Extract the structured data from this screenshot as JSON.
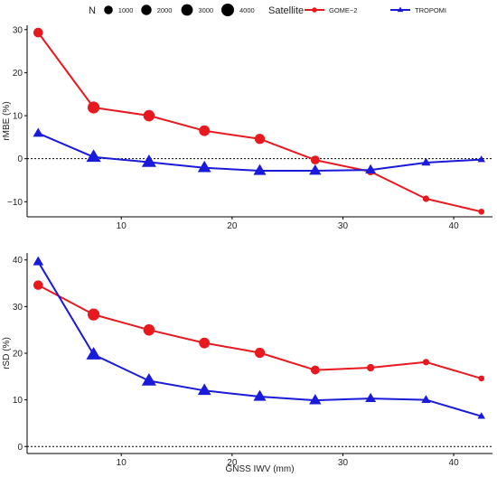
{
  "legend": {
    "size_title": "N",
    "size_entries": [
      {
        "label": "1000",
        "value": 1000
      },
      {
        "label": "2000",
        "value": 2000
      },
      {
        "label": "3000",
        "value": 3000
      },
      {
        "label": "4000",
        "value": 4000
      }
    ],
    "color_title": "Satellite",
    "series": [
      {
        "label": "GOME−2",
        "color": "#e8191e",
        "marker": "circle"
      },
      {
        "label": "TROPOMI",
        "color": "#1a1adb",
        "marker": "triangle"
      }
    ]
  },
  "chart_data": {
    "type": "line",
    "xlabel": "GNSS IWV (mm)",
    "xlim": [
      1.5,
      43.5
    ],
    "xticks": [
      10,
      20,
      30,
      40
    ],
    "x": [
      2.5,
      7.5,
      12.5,
      17.5,
      22.5,
      27.5,
      32.5,
      37.5,
      42.5
    ],
    "panels": [
      {
        "ylabel": "rMBE (%)",
        "ylim": [
          -13.5,
          31
        ],
        "yticks": [
          -10,
          0,
          10,
          20,
          30
        ],
        "yticklabels": [
          "−10",
          "0",
          "10",
          "20",
          "30"
        ],
        "reference_line": 0,
        "series": [
          {
            "name": "GOME−2",
            "values": [
              29.3,
              11.9,
              10.0,
              6.5,
              4.6,
              -0.3,
              -3.0,
              -9.3,
              -12.3
            ],
            "sizes": [
              1500,
              3300,
              2800,
              2300,
              1900,
              1100,
              500,
              200,
              100
            ]
          },
          {
            "name": "TROPOMI",
            "values": [
              5.9,
              0.4,
              -0.8,
              -2.1,
              -2.8,
              -2.8,
              -2.6,
              -0.9,
              -0.2
            ],
            "sizes": [
              1100,
              3700,
              3600,
              2700,
              2300,
              1900,
              1200,
              600,
              200
            ]
          }
        ]
      },
      {
        "ylabel": "rSD (%)",
        "ylim": [
          -1.5,
          41.5
        ],
        "yticks": [
          0,
          10,
          20,
          30,
          40
        ],
        "yticklabels": [
          "0",
          "10",
          "20",
          "30",
          "40"
        ],
        "reference_line": 0,
        "series": [
          {
            "name": "GOME−2",
            "values": [
              34.6,
              28.3,
              25.0,
              22.2,
              20.1,
              16.4,
              16.9,
              18.1,
              14.6
            ],
            "sizes": [
              1500,
              3300,
              2800,
              2300,
              1900,
              1100,
              500,
              200,
              100
            ]
          },
          {
            "name": "TROPOMI",
            "values": [
              39.6,
              19.7,
              14.1,
              12.0,
              10.7,
              9.9,
              10.3,
              10.0,
              6.5
            ],
            "sizes": [
              1100,
              3700,
              3600,
              2700,
              2300,
              1900,
              1200,
              600,
              200
            ]
          }
        ]
      }
    ]
  }
}
